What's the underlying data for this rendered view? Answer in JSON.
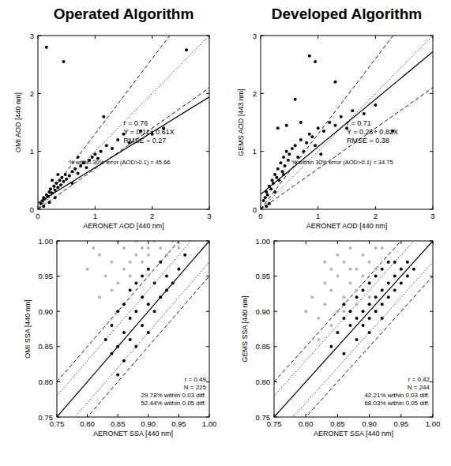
{
  "chart_data": [
    {
      "type": "scatter",
      "title": "Operated Algorithm",
      "x_label": "AERONET AOD [440 nm]",
      "y_label": "OMI AOD [440 nm]",
      "annotations": [
        "r = 0.76",
        "Y = 0.11+ 0.61X",
        "RMSE = 0.27",
        "% within 30% error (AOD>0.1) = 45.66"
      ],
      "xlim": [
        0,
        3
      ],
      "ylim": [
        0,
        3
      ],
      "xticks": [
        0,
        1,
        2,
        3
      ],
      "yticks": [
        0,
        1,
        2,
        3
      ],
      "reference_lines": [
        {
          "slope": 1,
          "intercept": 0,
          "line_style": "dotted"
        },
        {
          "slope": 1.3,
          "intercept": 0,
          "line_style": "dashed"
        },
        {
          "slope": 0.7,
          "intercept": 0,
          "line_style": "dashed"
        },
        {
          "slope": 0.61,
          "intercept": 0.11,
          "line_style": "solid"
        }
      ],
      "series": [
        {
          "color": "#000000",
          "marker": "circle",
          "x": [
            0.05,
            0.08,
            0.1,
            0.12,
            0.15,
            0.18,
            0.2,
            0.22,
            0.25,
            0.28,
            0.3,
            0.32,
            0.35,
            0.38,
            0.4,
            0.42,
            0.45,
            0.48,
            0.5,
            0.55,
            0.6,
            0.65,
            0.7,
            0.75,
            0.8,
            0.85,
            0.9,
            0.95,
            1.0,
            1.05,
            1.1,
            1.2,
            1.3,
            1.4,
            1.5,
            1.6,
            1.8,
            2.0,
            2.2,
            0.15,
            0.45,
            2.6,
            0.1,
            0.2,
            0.3,
            0.25,
            0.35,
            0.6,
            0.7,
            1.15
          ],
          "values": [
            0.1,
            0.15,
            0.2,
            0.18,
            0.25,
            0.22,
            0.3,
            0.35,
            0.28,
            0.4,
            0.33,
            0.45,
            0.38,
            0.5,
            0.42,
            0.55,
            0.48,
            0.6,
            0.52,
            0.58,
            0.65,
            0.7,
            0.62,
            0.75,
            0.8,
            0.72,
            0.85,
            0.9,
            0.95,
            0.88,
            1.0,
            1.1,
            1.05,
            1.2,
            1.3,
            1.15,
            1.35,
            1.3,
            1.4,
            2.8,
            2.55,
            2.75,
            0.05,
            0.12,
            0.2,
            0.5,
            0.6,
            0.45,
            0.9,
            1.6
          ]
        }
      ]
    },
    {
      "type": "scatter",
      "title": "Developed Algorithm",
      "x_label": "AERONET AOD [440 nm]",
      "y_label": "GEMS AOD [443 nm]",
      "annotations": [
        "r = 0.71",
        "Y = 0.26+ 0.82X",
        "RMSE = 0.38",
        "% within 30% error (AOD>0.1) = 34.75"
      ],
      "xlim": [
        0,
        3
      ],
      "ylim": [
        0,
        3
      ],
      "xticks": [
        0,
        1,
        2,
        3
      ],
      "yticks": [
        0,
        1,
        2,
        3
      ],
      "reference_lines": [
        {
          "slope": 1,
          "intercept": 0,
          "line_style": "dotted"
        },
        {
          "slope": 1.3,
          "intercept": 0,
          "line_style": "dashed"
        },
        {
          "slope": 0.7,
          "intercept": 0,
          "line_style": "dashed"
        },
        {
          "slope": 0.82,
          "intercept": 0.26,
          "line_style": "solid"
        }
      ],
      "series": [
        {
          "color": "#000000",
          "marker": "circle",
          "x": [
            0.05,
            0.08,
            0.1,
            0.12,
            0.15,
            0.18,
            0.2,
            0.22,
            0.25,
            0.28,
            0.3,
            0.32,
            0.35,
            0.38,
            0.4,
            0.42,
            0.45,
            0.48,
            0.5,
            0.55,
            0.6,
            0.65,
            0.7,
            0.75,
            0.8,
            0.85,
            0.9,
            0.95,
            1.0,
            1.1,
            1.2,
            1.3,
            1.4,
            1.5,
            1.6,
            1.8,
            2.0,
            2.3,
            0.85,
            0.95,
            1.3,
            0.6,
            0.45,
            0.3,
            0.15,
            0.25,
            0.4,
            0.7,
            1.05,
            0.1
          ],
          "values": [
            0.15,
            0.2,
            0.3,
            0.25,
            0.4,
            0.35,
            0.5,
            0.45,
            0.6,
            0.55,
            0.7,
            0.5,
            0.8,
            0.65,
            0.9,
            0.75,
            1.0,
            0.85,
            0.95,
            1.05,
            1.1,
            0.9,
            1.2,
            1.0,
            1.15,
            1.3,
            1.25,
            1.1,
            1.4,
            1.35,
            1.5,
            1.45,
            1.6,
            1.4,
            1.7,
            1.65,
            1.8,
            1.35,
            2.65,
            2.55,
            2.2,
            1.9,
            1.45,
            1.4,
            0.1,
            0.3,
            0.6,
            1.5,
            0.95,
            0.05
          ]
        }
      ]
    },
    {
      "type": "scatter",
      "x_label": "AERONET SSA [440 nm]",
      "y_label": "OMI SSA [440 nm]",
      "annotations": [
        "r = 0.49",
        "N = 225",
        "29.78% within 0.03 diff.",
        "52.44% within 0.05 diff."
      ],
      "xlim": [
        0.75,
        1
      ],
      "ylim": [
        0.75,
        1
      ],
      "xticks": [
        0.75,
        {
          "value": 0.8,
          "label": "0.80"
        },
        0.85,
        {
          "value": 0.9,
          "label": "0.90"
        },
        0.95,
        {
          "value": 1,
          "label": "1.00"
        }
      ],
      "yticks": [
        0.75,
        {
          "value": 0.8,
          "label": "0.80"
        },
        0.85,
        {
          "value": 0.9,
          "label": "0.90"
        },
        0.95,
        {
          "value": 1,
          "label": "1.00"
        }
      ],
      "reference_lines": [
        {
          "slope": 1,
          "intercept": 0,
          "line_style": "solid"
        },
        {
          "slope": 1,
          "intercept": 0.03,
          "line_style": "dotted"
        },
        {
          "slope": 1,
          "intercept": -0.03,
          "line_style": "dotted"
        },
        {
          "slope": 1,
          "intercept": 0.05,
          "line_style": "dashed"
        },
        {
          "slope": 1,
          "intercept": -0.05,
          "line_style": "dashed"
        }
      ],
      "series": [
        {
          "color": "#b4b4b4",
          "marker": "circle",
          "x": [
            0.8,
            0.81,
            0.82,
            0.83,
            0.84,
            0.85,
            0.86,
            0.86,
            0.87,
            0.88,
            0.88,
            0.89,
            0.9,
            0.9,
            0.91,
            0.92,
            0.93,
            0.94,
            0.82,
            0.84,
            0.87,
            0.9,
            0.85,
            0.89,
            0.95
          ],
          "values": [
            0.96,
            0.99,
            0.98,
            0.95,
            0.97,
            1.0,
            0.96,
            0.99,
            0.97,
            0.98,
            1.0,
            0.97,
            0.99,
            0.98,
            1.0,
            0.99,
            0.98,
            1.0,
            0.92,
            0.93,
            0.95,
            0.96,
            0.94,
            0.99,
            0.99
          ]
        },
        {
          "color": "#000000",
          "marker": "circle",
          "x": [
            0.83,
            0.84,
            0.84,
            0.85,
            0.85,
            0.86,
            0.86,
            0.86,
            0.87,
            0.87,
            0.87,
            0.88,
            0.88,
            0.88,
            0.89,
            0.89,
            0.89,
            0.9,
            0.9,
            0.9,
            0.91,
            0.91,
            0.92,
            0.92,
            0.93,
            0.93,
            0.94,
            0.95,
            0.96,
            0.85
          ],
          "values": [
            0.86,
            0.84,
            0.88,
            0.85,
            0.9,
            0.83,
            0.87,
            0.91,
            0.86,
            0.89,
            0.93,
            0.85,
            0.9,
            0.94,
            0.88,
            0.92,
            0.95,
            0.87,
            0.91,
            0.96,
            0.9,
            0.94,
            0.92,
            0.97,
            0.93,
            0.95,
            0.94,
            0.96,
            0.98,
            0.81
          ]
        }
      ]
    },
    {
      "type": "scatter",
      "x_label": "AERONET SSA [440 nm]",
      "y_label": "GEMS SSA [440 nm]",
      "annotations": [
        "r = 0.42",
        "N = 244",
        "42.21% within 0.03 diff.",
        "68.03% within 0.05 diff."
      ],
      "xlim": [
        0.75,
        1
      ],
      "ylim": [
        0.75,
        1
      ],
      "xticks": [
        0.75,
        {
          "value": 0.8,
          "label": "0.80"
        },
        0.85,
        {
          "value": 0.9,
          "label": "0.90"
        },
        0.95,
        {
          "value": 1,
          "label": "1.00"
        }
      ],
      "yticks": [
        0.75,
        {
          "value": 0.8,
          "label": "0.80"
        },
        0.85,
        {
          "value": 0.9,
          "label": "0.90"
        },
        0.95,
        {
          "value": 1,
          "label": "1.00"
        }
      ],
      "reference_lines": [
        {
          "slope": 1,
          "intercept": 0,
          "line_style": "solid"
        },
        {
          "slope": 1,
          "intercept": 0.03,
          "line_style": "dotted"
        },
        {
          "slope": 1,
          "intercept": -0.03,
          "line_style": "dotted"
        },
        {
          "slope": 1,
          "intercept": 0.05,
          "line_style": "dashed"
        },
        {
          "slope": 1,
          "intercept": -0.05,
          "line_style": "dashed"
        }
      ],
      "series": [
        {
          "color": "#b4b4b4",
          "marker": "circle",
          "x": [
            0.8,
            0.81,
            0.82,
            0.83,
            0.83,
            0.84,
            0.84,
            0.85,
            0.85,
            0.86,
            0.86,
            0.87,
            0.87,
            0.88,
            0.88,
            0.89,
            0.89,
            0.9,
            0.9,
            0.91,
            0.82,
            0.84,
            0.86,
            0.88,
            0.9,
            0.87,
            0.85,
            0.83,
            0.92,
            0.91
          ],
          "values": [
            0.9,
            0.92,
            0.89,
            0.94,
            0.91,
            0.93,
            0.96,
            0.9,
            0.95,
            0.92,
            0.97,
            0.94,
            0.99,
            0.93,
            0.96,
            0.95,
            0.98,
            0.94,
            0.97,
            0.99,
            0.86,
            0.88,
            0.9,
            0.91,
            0.92,
            0.96,
            0.98,
            0.97,
            0.99,
            0.96
          ]
        },
        {
          "color": "#000000",
          "marker": "circle",
          "x": [
            0.84,
            0.85,
            0.86,
            0.86,
            0.87,
            0.87,
            0.88,
            0.88,
            0.88,
            0.89,
            0.89,
            0.89,
            0.9,
            0.9,
            0.9,
            0.91,
            0.91,
            0.91,
            0.92,
            0.92,
            0.92,
            0.93,
            0.93,
            0.93,
            0.94,
            0.94,
            0.94,
            0.95,
            0.95,
            0.96,
            0.96,
            0.97,
            0.86,
            0.9,
            0.92
          ],
          "values": [
            0.85,
            0.87,
            0.84,
            0.89,
            0.88,
            0.9,
            0.86,
            0.89,
            0.92,
            0.9,
            0.93,
            0.88,
            0.91,
            0.94,
            0.89,
            0.92,
            0.95,
            0.9,
            0.93,
            0.96,
            0.91,
            0.94,
            0.97,
            0.92,
            0.95,
            0.93,
            0.97,
            0.96,
            0.94,
            0.97,
            0.95,
            0.96,
            0.91,
            0.87,
            0.89
          ]
        }
      ]
    }
  ]
}
